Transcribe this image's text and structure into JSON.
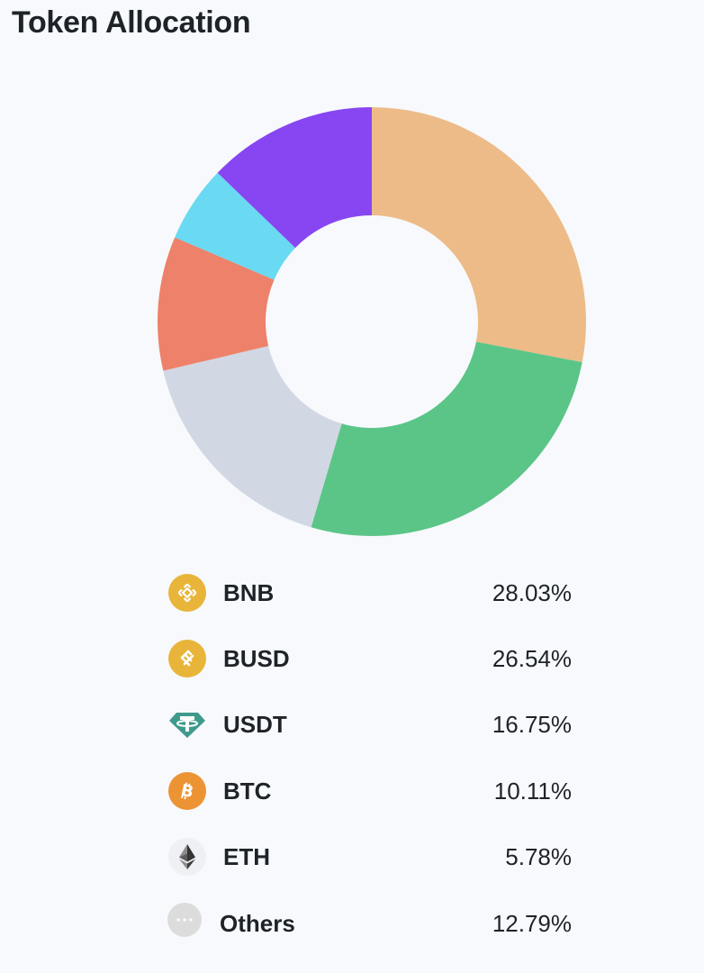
{
  "title": "Token Allocation",
  "chart_data": {
    "type": "pie",
    "categories": [
      "BNB",
      "BUSD",
      "USDT",
      "BTC",
      "ETH",
      "Others"
    ],
    "values": [
      28.03,
      26.54,
      16.75,
      10.11,
      5.78,
      12.79
    ],
    "value_labels": [
      "28.03%",
      "26.54%",
      "16.75%",
      "10.11%",
      "5.78%",
      "12.79%"
    ],
    "unit": "%",
    "donut": true,
    "colors": [
      "#edbb88",
      "#5bc587",
      "#d1d7e3",
      "#ee8169",
      "#6ad9f2",
      "#8746f1"
    ],
    "legend_position": "bottom"
  },
  "legend": {
    "items": [
      {
        "label": "BNB",
        "value": "28.03%",
        "icon": "bnb-icon",
        "icon_color": "#e8b53a"
      },
      {
        "label": "BUSD",
        "value": "26.54%",
        "icon": "busd-icon",
        "icon_color": "#e8b53a"
      },
      {
        "label": "USDT",
        "value": "16.75%",
        "icon": "usdt-icon",
        "icon_color": "#3f9a8c"
      },
      {
        "label": "BTC",
        "value": "10.11%",
        "icon": "btc-icon",
        "icon_color": "#ec9334"
      },
      {
        "label": "ETH",
        "value": "5.78%",
        "icon": "eth-icon",
        "icon_color": "#2f3030"
      },
      {
        "label": "Others",
        "value": "12.79%",
        "icon": "more-icon",
        "icon_color": "#dcdcdc"
      }
    ]
  }
}
